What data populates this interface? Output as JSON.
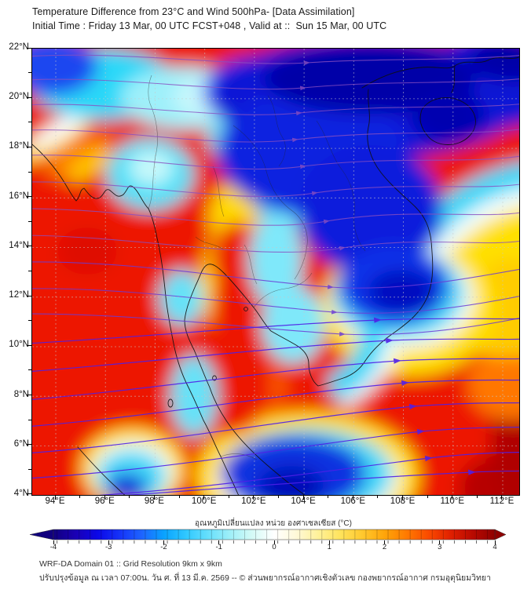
{
  "header": {
    "title_line1": "Temperature Difference from 23°C and Wind 500hPa- [Data Assimilation]",
    "title_line2": "Initial Time : Friday 13 Mar, 00 UTC FCST+048 , Valid at ::  Sun 15 Mar, 00 UTC"
  },
  "map": {
    "lat_labels": [
      "22°N",
      "20°N",
      "18°N",
      "16°N",
      "14°N",
      "12°N",
      "10°N",
      "8°N",
      "6°N",
      "4°N"
    ],
    "lon_labels": [
      "94°E",
      "96°E",
      "98°E",
      "100°E",
      "102°E",
      "104°E",
      "106°E",
      "108°E",
      "110°E",
      "112°E"
    ]
  },
  "colorbar": {
    "label": "อุณหภูมิเปลี่ยนแปลง หน่วย องศาเซลเซียส (°C)",
    "ticks": [
      "-4",
      "-3",
      "-2",
      "-1",
      "0",
      "1",
      "2",
      "3",
      "4"
    ],
    "gradient": [
      {
        "v": -4,
        "c": "#11007E"
      },
      {
        "v": -3.6,
        "c": "#1A00B4"
      },
      {
        "v": -3.2,
        "c": "#0B07E8"
      },
      {
        "v": -2.8,
        "c": "#1533F8"
      },
      {
        "v": -2.4,
        "c": "#1E64FF"
      },
      {
        "v": -2,
        "c": "#09A2FF"
      },
      {
        "v": -1.6,
        "c": "#2FC8FF"
      },
      {
        "v": -1.2,
        "c": "#66DFFC"
      },
      {
        "v": -0.8,
        "c": "#9FEFF8"
      },
      {
        "v": -0.4,
        "c": "#D4FAF6"
      },
      {
        "v": 0,
        "c": "#FFFFFF"
      },
      {
        "v": 0.4,
        "c": "#FFF9D8"
      },
      {
        "v": 0.8,
        "c": "#FFF199"
      },
      {
        "v": 1.2,
        "c": "#FFE35C"
      },
      {
        "v": 1.6,
        "c": "#FFC82E"
      },
      {
        "v": 2,
        "c": "#FFA50A"
      },
      {
        "v": 2.4,
        "c": "#FF7A00"
      },
      {
        "v": 2.8,
        "c": "#FA4A00"
      },
      {
        "v": 3.2,
        "c": "#E02000"
      },
      {
        "v": 3.6,
        "c": "#B80A00"
      },
      {
        "v": 4,
        "c": "#8F0000"
      }
    ],
    "end_colors": {
      "left_arrow": "#11007E",
      "right_arrow": "#8F0000"
    }
  },
  "footer": {
    "line1": "WRF-DA Domain 01 :: Grid Resolution 9km x 9km",
    "line2": "ปรับปรุงข้อมูล ณ เวลา 07:00น. วัน ศ. ที่ 13 มี.ค. 2569 -- © ส่วนพยากรณ์อากาศเชิงตัวเลข กองพยากรณ์อากาศ กรมอุตุนิยมวิทยา"
  },
  "theme": {
    "cold_core": "#0003A8",
    "cold": "#0A18D6",
    "cool": "#2BD8F8",
    "neutral": "#FFFFFF",
    "warm": "#FFD900",
    "hot": "#ED1404",
    "hot_core": "#9A0000",
    "stream_upper": "#9A64C8",
    "stream_mid": "#7A4FD0",
    "stream_lower": "#5A2BE8",
    "coast": "#101010",
    "grid": "#c8c8c8"
  }
}
